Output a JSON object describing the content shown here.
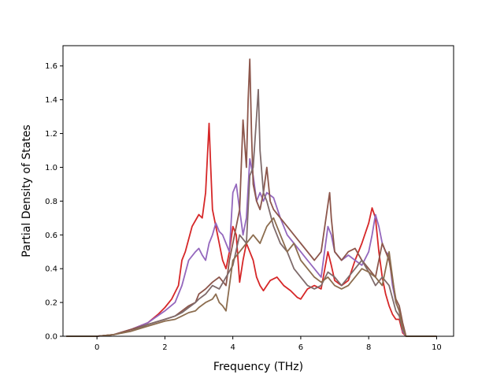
{
  "chart_data": {
    "type": "line",
    "title": "",
    "xlabel": "Frequency (THz)",
    "ylabel": "Partial Density of States",
    "xlim": [
      -1.0,
      10.5
    ],
    "ylim": [
      0.0,
      1.72
    ],
    "xticks": [
      0,
      2,
      4,
      6,
      8,
      10
    ],
    "yticks": [
      0.0,
      0.2,
      0.4,
      0.6,
      0.8,
      1.0,
      1.2,
      1.4,
      1.6
    ],
    "xtick_labels": [
      "0",
      "2",
      "4",
      "6",
      "8",
      "10"
    ],
    "ytick_labels": [
      "0.0",
      "0.2",
      "0.4",
      "0.6",
      "0.8",
      "1.0",
      "1.2",
      "1.4",
      "1.6"
    ],
    "grid": false,
    "legend": "none",
    "series": [
      {
        "color": "#d62728",
        "x": [
          -0.9,
          0.0,
          0.5,
          1.0,
          1.5,
          1.8,
          2.0,
          2.2,
          2.4,
          2.5,
          2.6,
          2.8,
          3.0,
          3.1,
          3.2,
          3.3,
          3.35,
          3.4,
          3.5,
          3.6,
          3.7,
          3.8,
          3.9,
          4.0,
          4.1,
          4.2,
          4.3,
          4.4,
          4.5,
          4.6,
          4.7,
          4.8,
          4.9,
          5.0,
          5.1,
          5.3,
          5.5,
          5.7,
          5.9,
          6.0,
          6.2,
          6.4,
          6.6,
          6.8,
          6.9,
          7.0,
          7.2,
          7.4,
          7.6,
          7.8,
          8.0,
          8.1,
          8.2,
          8.3,
          8.4,
          8.5,
          8.6,
          8.7,
          8.8,
          8.9,
          9.0,
          9.1,
          10.0
        ],
        "y": [
          0.0,
          0.0,
          0.01,
          0.04,
          0.08,
          0.13,
          0.17,
          0.22,
          0.3,
          0.45,
          0.5,
          0.65,
          0.72,
          0.7,
          0.85,
          1.26,
          1.0,
          0.75,
          0.65,
          0.55,
          0.45,
          0.4,
          0.5,
          0.65,
          0.6,
          0.32,
          0.45,
          0.55,
          0.5,
          0.45,
          0.35,
          0.3,
          0.27,
          0.3,
          0.33,
          0.35,
          0.3,
          0.27,
          0.23,
          0.22,
          0.28,
          0.3,
          0.28,
          0.5,
          0.42,
          0.33,
          0.3,
          0.33,
          0.45,
          0.55,
          0.67,
          0.76,
          0.7,
          0.5,
          0.35,
          0.25,
          0.18,
          0.13,
          0.1,
          0.1,
          0.02,
          0.0,
          0.0
        ]
      },
      {
        "color": "#9467bd",
        "x": [
          -0.9,
          0.0,
          0.5,
          1.0,
          1.5,
          2.0,
          2.3,
          2.5,
          2.7,
          2.9,
          3.0,
          3.1,
          3.2,
          3.3,
          3.4,
          3.5,
          3.6,
          3.7,
          3.8,
          3.9,
          4.0,
          4.1,
          4.2,
          4.3,
          4.4,
          4.5,
          4.6,
          4.7,
          4.8,
          4.9,
          5.0,
          5.2,
          5.4,
          5.6,
          5.8,
          6.0,
          6.2,
          6.4,
          6.6,
          6.8,
          6.9,
          7.0,
          7.2,
          7.4,
          7.6,
          7.8,
          8.0,
          8.1,
          8.2,
          8.3,
          8.4,
          8.5,
          8.6,
          8.7,
          8.8,
          8.9,
          9.0,
          9.1,
          10.0
        ],
        "y": [
          0.0,
          0.0,
          0.01,
          0.04,
          0.08,
          0.15,
          0.2,
          0.3,
          0.45,
          0.5,
          0.52,
          0.48,
          0.45,
          0.55,
          0.6,
          0.67,
          0.62,
          0.6,
          0.55,
          0.5,
          0.85,
          0.9,
          0.75,
          0.6,
          0.7,
          1.05,
          0.95,
          0.8,
          0.85,
          0.8,
          0.85,
          0.82,
          0.7,
          0.6,
          0.55,
          0.5,
          0.45,
          0.4,
          0.35,
          0.65,
          0.6,
          0.5,
          0.45,
          0.48,
          0.45,
          0.42,
          0.5,
          0.6,
          0.72,
          0.65,
          0.55,
          0.5,
          0.48,
          0.3,
          0.2,
          0.15,
          0.03,
          0.0,
          0.0
        ]
      },
      {
        "color": "#8c564b",
        "x": [
          -0.9,
          0.0,
          0.5,
          1.0,
          1.5,
          2.0,
          2.3,
          2.5,
          2.7,
          2.9,
          3.0,
          3.2,
          3.4,
          3.6,
          3.8,
          3.9,
          4.0,
          4.1,
          4.2,
          4.3,
          4.4,
          4.45,
          4.5,
          4.55,
          4.6,
          4.7,
          4.8,
          4.9,
          5.0,
          5.1,
          5.2,
          5.4,
          5.6,
          5.8,
          6.0,
          6.2,
          6.4,
          6.6,
          6.8,
          6.85,
          6.9,
          7.0,
          7.2,
          7.4,
          7.6,
          7.8,
          8.0,
          8.2,
          8.4,
          8.6,
          8.8,
          8.9,
          9.0,
          9.1,
          10.0
        ],
        "y": [
          0.0,
          0.0,
          0.01,
          0.04,
          0.07,
          0.1,
          0.12,
          0.15,
          0.18,
          0.2,
          0.25,
          0.28,
          0.32,
          0.35,
          0.3,
          0.45,
          0.55,
          0.65,
          0.75,
          1.28,
          1.0,
          1.4,
          1.64,
          1.2,
          0.9,
          0.8,
          0.75,
          0.85,
          1.0,
          0.8,
          0.75,
          0.7,
          0.65,
          0.6,
          0.55,
          0.5,
          0.45,
          0.5,
          0.78,
          0.85,
          0.7,
          0.5,
          0.45,
          0.5,
          0.52,
          0.45,
          0.4,
          0.35,
          0.55,
          0.45,
          0.22,
          0.18,
          0.08,
          0.0,
          0.0
        ]
      },
      {
        "color": "#7f6b6b",
        "x": [
          -0.9,
          0.0,
          0.5,
          1.0,
          1.5,
          2.0,
          2.3,
          2.5,
          2.7,
          2.9,
          3.0,
          3.2,
          3.4,
          3.6,
          3.8,
          4.0,
          4.2,
          4.4,
          4.5,
          4.6,
          4.7,
          4.75,
          4.8,
          4.9,
          5.0,
          5.2,
          5.4,
          5.6,
          5.8,
          6.0,
          6.2,
          6.4,
          6.6,
          6.8,
          7.0,
          7.2,
          7.4,
          7.6,
          7.8,
          8.0,
          8.2,
          8.4,
          8.6,
          8.8,
          8.9,
          9.0,
          9.1,
          10.0
        ],
        "y": [
          0.0,
          0.0,
          0.01,
          0.03,
          0.07,
          0.1,
          0.12,
          0.14,
          0.17,
          0.2,
          0.22,
          0.25,
          0.3,
          0.28,
          0.35,
          0.42,
          0.6,
          0.55,
          0.95,
          1.0,
          1.3,
          1.46,
          1.1,
          0.85,
          0.8,
          0.65,
          0.55,
          0.5,
          0.4,
          0.35,
          0.3,
          0.28,
          0.3,
          0.38,
          0.35,
          0.3,
          0.35,
          0.4,
          0.45,
          0.38,
          0.3,
          0.35,
          0.3,
          0.15,
          0.12,
          0.04,
          0.0,
          0.0
        ]
      },
      {
        "color": "#8c6d4f",
        "x": [
          -0.9,
          0.0,
          0.5,
          1.0,
          1.5,
          2.0,
          2.3,
          2.5,
          2.7,
          2.9,
          3.0,
          3.2,
          3.4,
          3.5,
          3.6,
          3.7,
          3.8,
          4.0,
          4.2,
          4.4,
          4.6,
          4.8,
          5.0,
          5.2,
          5.4,
          5.6,
          5.8,
          6.0,
          6.2,
          6.4,
          6.6,
          6.8,
          7.0,
          7.2,
          7.4,
          7.6,
          7.8,
          8.0,
          8.2,
          8.4,
          8.6,
          8.8,
          8.9,
          9.0,
          9.1,
          10.0
        ],
        "y": [
          0.0,
          0.0,
          0.01,
          0.03,
          0.06,
          0.09,
          0.1,
          0.12,
          0.14,
          0.15,
          0.17,
          0.2,
          0.22,
          0.25,
          0.2,
          0.18,
          0.15,
          0.45,
          0.5,
          0.55,
          0.6,
          0.55,
          0.65,
          0.7,
          0.6,
          0.5,
          0.55,
          0.45,
          0.4,
          0.35,
          0.32,
          0.35,
          0.3,
          0.28,
          0.3,
          0.35,
          0.4,
          0.38,
          0.35,
          0.3,
          0.5,
          0.2,
          0.15,
          0.05,
          0.0,
          0.0
        ]
      }
    ]
  }
}
